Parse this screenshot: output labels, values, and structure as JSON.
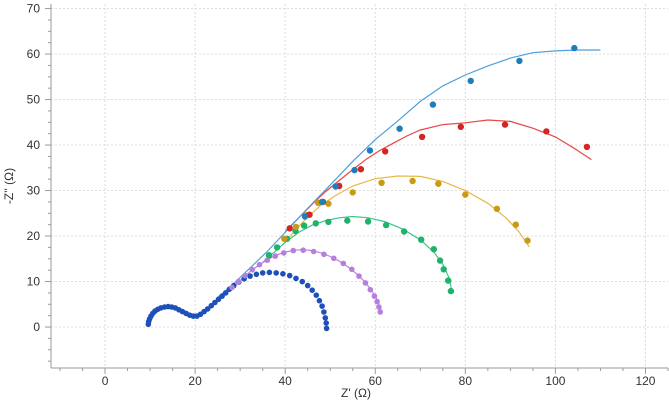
{
  "chart_data": {
    "type": "scatter",
    "title": "",
    "xlabel": "Z' (Ω)",
    "ylabel": "-Z'' (Ω)",
    "xlim": [
      -12,
      125
    ],
    "ylim": [
      -9,
      71
    ],
    "xticks": [
      0,
      20,
      40,
      60,
      80,
      100,
      120
    ],
    "yticks": [
      0,
      10,
      20,
      30,
      40,
      50,
      60,
      70
    ],
    "grid": true,
    "legend": "none",
    "series": [
      {
        "color": "#1f4fb8",
        "marker_size": 2.8,
        "points": [
          [
            9.6,
            0.6
          ],
          [
            9.7,
            1.2
          ],
          [
            9.9,
            1.8
          ],
          [
            10.2,
            2.4
          ],
          [
            10.6,
            3.0
          ],
          [
            11.1,
            3.5
          ],
          [
            11.7,
            3.9
          ],
          [
            12.4,
            4.2
          ],
          [
            13.2,
            4.4
          ],
          [
            14.0,
            4.5
          ],
          [
            14.8,
            4.4
          ],
          [
            15.6,
            4.2
          ],
          [
            16.4,
            3.8
          ],
          [
            17.2,
            3.4
          ],
          [
            18.0,
            3.0
          ],
          [
            18.8,
            2.6
          ],
          [
            19.6,
            2.4
          ],
          [
            20.4,
            2.4
          ],
          [
            21.2,
            2.8
          ],
          [
            22.0,
            3.4
          ],
          [
            22.8,
            4.0
          ],
          [
            23.6,
            4.7
          ],
          [
            24.4,
            5.4
          ],
          [
            25.2,
            6.1
          ],
          [
            26.0,
            6.8
          ],
          [
            26.8,
            7.5
          ],
          [
            27.6,
            8.3
          ],
          [
            28.6,
            9.1
          ],
          [
            29.7,
            9.9
          ],
          [
            30.9,
            10.6
          ],
          [
            32.2,
            11.2
          ],
          [
            33.6,
            11.6
          ],
          [
            35.0,
            11.9
          ],
          [
            36.5,
            12.0
          ],
          [
            38.0,
            11.9
          ],
          [
            39.5,
            11.7
          ],
          [
            41.0,
            11.3
          ],
          [
            42.4,
            10.7
          ],
          [
            43.8,
            10.0
          ],
          [
            45.0,
            9.1
          ],
          [
            46.0,
            8.1
          ],
          [
            46.9,
            7.0
          ],
          [
            47.6,
            5.8
          ],
          [
            48.2,
            4.6
          ],
          [
            48.6,
            3.3
          ],
          [
            48.9,
            2.0
          ],
          [
            49.1,
            0.9
          ],
          [
            49.2,
            -0.3
          ]
        ]
      },
      {
        "color": "#b57fdc",
        "marker_size": 2.8,
        "points": [
          [
            28.2,
            8.7
          ],
          [
            29.6,
            10.0
          ],
          [
            31.1,
            11.3
          ],
          [
            32.7,
            12.6
          ],
          [
            34.3,
            13.7
          ],
          [
            36.0,
            14.7
          ],
          [
            37.8,
            15.6
          ],
          [
            39.7,
            16.3
          ],
          [
            41.8,
            16.8
          ],
          [
            44.0,
            16.9
          ],
          [
            46.3,
            16.6
          ],
          [
            48.6,
            16.0
          ],
          [
            50.8,
            15.1
          ],
          [
            52.9,
            14.0
          ],
          [
            54.8,
            12.7
          ],
          [
            56.4,
            11.2
          ],
          [
            57.8,
            9.7
          ],
          [
            58.9,
            8.2
          ],
          [
            59.8,
            6.8
          ],
          [
            60.4,
            5.6
          ],
          [
            60.8,
            4.4
          ],
          [
            61.1,
            3.3
          ]
        ]
      },
      {
        "color": "#1fb36a",
        "marker_size": 3.2,
        "points": [
          [
            36.4,
            15.8
          ],
          [
            38.2,
            17.5
          ],
          [
            40.4,
            19.4
          ],
          [
            42.3,
            21.1
          ],
          [
            44.2,
            22.3
          ],
          [
            46.8,
            22.8
          ],
          [
            49.6,
            23.1
          ],
          [
            53.8,
            23.4
          ],
          [
            58.4,
            23.2
          ],
          [
            62.4,
            22.4
          ],
          [
            66.4,
            21.0
          ],
          [
            70.2,
            19.2
          ],
          [
            73.0,
            17.1
          ],
          [
            74.4,
            14.6
          ],
          [
            75.2,
            12.7
          ],
          [
            76.2,
            10.2
          ],
          [
            76.8,
            7.9
          ]
        ]
      },
      {
        "color": "#c99a13",
        "marker_size": 3.2,
        "points": [
          [
            39.8,
            19.4
          ],
          [
            42.4,
            22.0
          ],
          [
            44.8,
            24.6
          ],
          [
            47.3,
            27.3
          ],
          [
            49.6,
            27.1
          ],
          [
            55.0,
            29.6
          ],
          [
            61.4,
            31.7
          ],
          [
            68.3,
            32.1
          ],
          [
            74.0,
            31.5
          ],
          [
            80.0,
            29.1
          ],
          [
            87.0,
            26.0
          ],
          [
            91.2,
            22.5
          ],
          [
            93.8,
            19.0
          ]
        ]
      },
      {
        "color": "#d42424",
        "marker_size": 3.2,
        "points": [
          [
            41.0,
            21.7
          ],
          [
            45.4,
            24.7
          ],
          [
            48.4,
            27.5
          ],
          [
            52.0,
            31.0
          ],
          [
            56.8,
            34.7
          ],
          [
            62.2,
            38.6
          ],
          [
            70.4,
            41.8
          ],
          [
            79.0,
            44.0
          ],
          [
            88.8,
            44.5
          ],
          [
            98.0,
            43.0
          ],
          [
            107.0,
            39.6
          ]
        ]
      },
      {
        "color": "#1f7dbb",
        "marker_size": 3.2,
        "points": [
          [
            44.4,
            24.3
          ],
          [
            48.2,
            27.5
          ],
          [
            51.2,
            30.9
          ],
          [
            55.4,
            34.5
          ],
          [
            58.8,
            38.8
          ],
          [
            65.4,
            43.6
          ],
          [
            72.8,
            48.9
          ],
          [
            81.2,
            54.1
          ],
          [
            92.0,
            58.5
          ],
          [
            104.2,
            61.3
          ]
        ]
      }
    ],
    "fits": [
      {
        "color": "#e6b94a",
        "points": [
          [
            40.0,
            18.8
          ],
          [
            42.5,
            21.5
          ],
          [
            45.0,
            24.2
          ],
          [
            48.0,
            26.8
          ],
          [
            51.0,
            28.8
          ],
          [
            55.0,
            31.0
          ],
          [
            60.0,
            32.6
          ],
          [
            65.0,
            33.2
          ],
          [
            70.0,
            33.1
          ],
          [
            75.0,
            32.0
          ],
          [
            80.0,
            30.0
          ],
          [
            85.0,
            27.2
          ],
          [
            89.0,
            24.0
          ],
          [
            92.0,
            20.8
          ],
          [
            94.2,
            17.6
          ]
        ]
      },
      {
        "color": "#3cc48a",
        "points": [
          [
            35.0,
            14.2
          ],
          [
            37.5,
            16.4
          ],
          [
            40.0,
            18.6
          ],
          [
            43.0,
            20.8
          ],
          [
            46.0,
            22.4
          ],
          [
            49.0,
            23.4
          ],
          [
            52.0,
            24.0
          ],
          [
            55.0,
            24.3
          ],
          [
            58.5,
            24.0
          ],
          [
            62.0,
            23.2
          ],
          [
            66.0,
            21.6
          ],
          [
            70.0,
            19.2
          ],
          [
            73.0,
            16.5
          ],
          [
            75.0,
            13.8
          ],
          [
            76.4,
            10.8
          ],
          [
            77.0,
            8.0
          ]
        ]
      },
      {
        "color": "#c07ee0",
        "points": [
          [
            28.0,
            8.4
          ],
          [
            30.0,
            10.2
          ],
          [
            32.0,
            12.0
          ],
          [
            34.0,
            13.5
          ],
          [
            36.0,
            14.8
          ],
          [
            38.0,
            15.8
          ],
          [
            40.0,
            16.5
          ],
          [
            42.0,
            16.9
          ],
          [
            44.0,
            17.0
          ],
          [
            46.0,
            16.8
          ],
          [
            48.0,
            16.3
          ],
          [
            50.0,
            15.5
          ],
          [
            52.0,
            14.5
          ],
          [
            54.0,
            13.2
          ],
          [
            56.0,
            11.6
          ],
          [
            57.8,
            9.8
          ],
          [
            59.2,
            8.0
          ],
          [
            60.2,
            6.4
          ],
          [
            60.9,
            4.9
          ],
          [
            61.3,
            3.8
          ]
        ]
      },
      {
        "color": "#e64747",
        "points": [
          [
            40.0,
            21.0
          ],
          [
            43.0,
            24.0
          ],
          [
            46.0,
            27.0
          ],
          [
            49.0,
            29.8
          ],
          [
            52.0,
            32.2
          ],
          [
            55.0,
            34.6
          ],
          [
            58.0,
            36.9
          ],
          [
            61.0,
            38.8
          ],
          [
            64.0,
            40.4
          ],
          [
            67.0,
            42.0
          ],
          [
            70.0,
            43.3
          ],
          [
            75.0,
            44.5
          ],
          [
            80.0,
            44.9
          ],
          [
            85.0,
            45.5
          ],
          [
            90.0,
            45.2
          ],
          [
            95.0,
            43.7
          ],
          [
            100.0,
            41.8
          ],
          [
            104.0,
            39.4
          ],
          [
            108.0,
            36.8
          ]
        ]
      },
      {
        "color": "#4f9fdc",
        "points": [
          [
            25.0,
            6.5
          ],
          [
            28.0,
            9.0
          ],
          [
            32.0,
            12.8
          ],
          [
            36.0,
            16.6
          ],
          [
            40.0,
            20.8
          ],
          [
            45.0,
            26.1
          ],
          [
            50.0,
            31.2
          ],
          [
            55.0,
            36.4
          ],
          [
            60.0,
            41.2
          ],
          [
            65.0,
            45.3
          ],
          [
            70.0,
            49.6
          ],
          [
            75.0,
            53.0
          ],
          [
            80.0,
            55.4
          ],
          [
            85.0,
            57.4
          ],
          [
            90.0,
            59.1
          ],
          [
            95.0,
            60.3
          ],
          [
            100.0,
            60.7
          ],
          [
            105.0,
            60.9
          ],
          [
            110.0,
            60.9
          ]
        ]
      }
    ]
  }
}
